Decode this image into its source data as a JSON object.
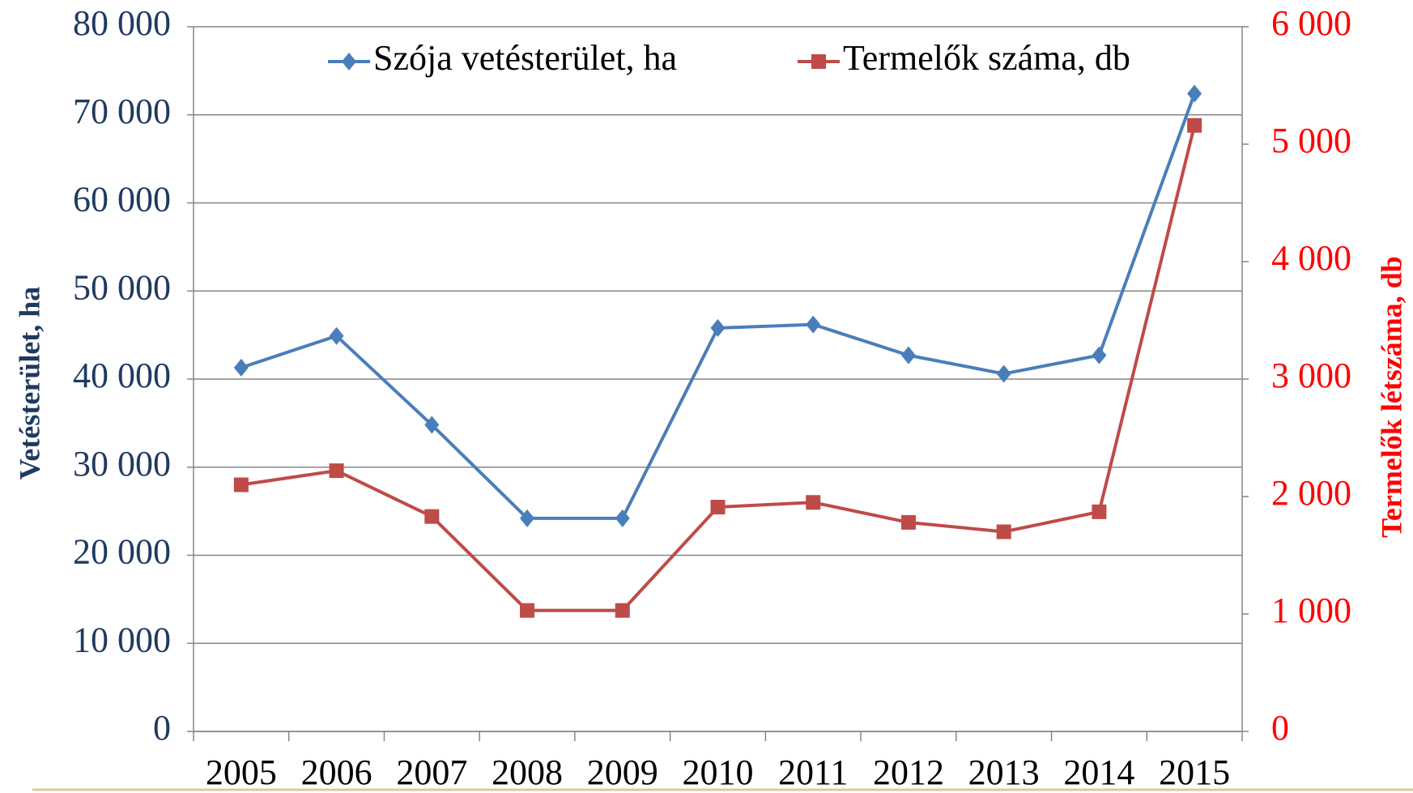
{
  "chart_data": {
    "type": "line",
    "categories": [
      "2005",
      "2006",
      "2007",
      "2008",
      "2009",
      "2010",
      "2011",
      "2012",
      "2013",
      "2014",
      "2015"
    ],
    "series": [
      {
        "name": "Szója vetésterület, ha",
        "color": "#4a7ebb",
        "marker": "diamond",
        "values": [
          41300,
          44900,
          34800,
          24200,
          24200,
          45800,
          46200,
          42700,
          40600,
          42700,
          72400
        ]
      },
      {
        "name": "Termelők száma, db",
        "color": "#be4b48",
        "marker": "square",
        "axis": "y2",
        "values": [
          2100,
          2220,
          1830,
          1030,
          1030,
          1910,
          1950,
          1780,
          1700,
          1870,
          5160
        ]
      }
    ],
    "ylabel": "Vetésterület, ha",
    "y2label": "Termelők létszáma, db",
    "ylim": [
      0,
      80000
    ],
    "yticks": [
      0,
      {
        "value": 10000,
        "label": "10 000"
      },
      {
        "value": 20000,
        "label": "20 000"
      },
      {
        "value": 30000,
        "label": "30 000"
      },
      {
        "value": 40000,
        "label": "40 000"
      },
      {
        "value": 50000,
        "label": "50 000"
      },
      {
        "value": 60000,
        "label": "60 000"
      },
      {
        "value": 70000,
        "label": "70 000"
      },
      {
        "value": 80000,
        "label": "80 000"
      }
    ],
    "y2lim": [
      0,
      6000
    ],
    "y2ticks": [
      0,
      {
        "value": 1000,
        "label": "1 000"
      },
      {
        "value": 2000,
        "label": "2 000"
      },
      {
        "value": 3000,
        "label": "3 000"
      },
      {
        "value": 4000,
        "label": "4 000"
      },
      {
        "value": 5000,
        "label": "5 000"
      },
      {
        "value": 6000,
        "label": "6 000"
      }
    ],
    "grid": true,
    "legend": "top"
  }
}
